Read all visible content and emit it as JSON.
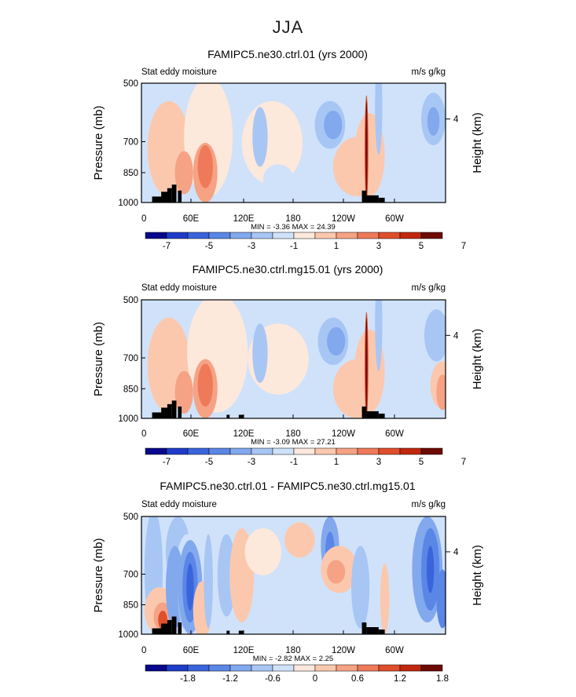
{
  "title": "JJA",
  "colors": [
    "#08088c",
    "#1e3cc8",
    "#3a64dc",
    "#5a86e6",
    "#82a8ee",
    "#a8c6f4",
    "#cfe2fa",
    "#fde8dc",
    "#fbc8ae",
    "#f6a284",
    "#ee7a5a",
    "#e04e2c",
    "#c0280e",
    "#6e0a04"
  ],
  "chart_data": [
    {
      "type": "contour",
      "title": "FAMIPC5.ne30.ctrl.01 (yrs 2000)",
      "left_label": "Stat eddy moisture",
      "right_label": "m/s g/kg",
      "xlabel": "",
      "ylabel": "Pressure (mb)",
      "y2label": "Height (km)",
      "xticks": [
        "0",
        "60E",
        "120E",
        "180",
        "120W",
        "60W"
      ],
      "yticks": [
        "500",
        "700",
        "850",
        "1000"
      ],
      "y2ticks": [
        "4"
      ],
      "stats": "MIN =   -3.36   MAX =   24.39",
      "colorbar_labels": [
        "-7",
        "-5",
        "-3",
        "-1",
        "1",
        "3",
        "5",
        "7"
      ]
    },
    {
      "type": "contour",
      "title": "FAMIPC5.ne30.ctrl.mg15.01 (yrs 2000)",
      "left_label": "Stat eddy moisture",
      "right_label": "m/s g/kg",
      "xlabel": "",
      "ylabel": "Pressure (mb)",
      "y2label": "Height (km)",
      "xticks": [
        "0",
        "60E",
        "120E",
        "180",
        "120W",
        "60W"
      ],
      "yticks": [
        "500",
        "700",
        "850",
        "1000"
      ],
      "y2ticks": [
        "4"
      ],
      "stats": "MIN =   -3.09   MAX =   27.21",
      "colorbar_labels": [
        "-7",
        "-5",
        "-3",
        "-1",
        "1",
        "3",
        "5",
        "7"
      ]
    },
    {
      "type": "contour",
      "title": "FAMIPC5.ne30.ctrl.01 - FAMIPC5.ne30.ctrl.mg15.01",
      "left_label": "Stat eddy moisture",
      "right_label": "m/s g/kg",
      "xlabel": "",
      "ylabel": "Pressure (mb)",
      "y2label": "Height (km)",
      "xticks": [
        "0",
        "60E",
        "120E",
        "180",
        "120W",
        "60W"
      ],
      "yticks": [
        "500",
        "700",
        "850",
        "1000"
      ],
      "y2ticks": [
        "4"
      ],
      "stats": "MIN =   -2.82   MAX =    2.25",
      "colorbar_labels": [
        "-1.8",
        "-1.2",
        "-0.6",
        "0",
        "0.6",
        "1.2",
        "1.8"
      ]
    }
  ]
}
